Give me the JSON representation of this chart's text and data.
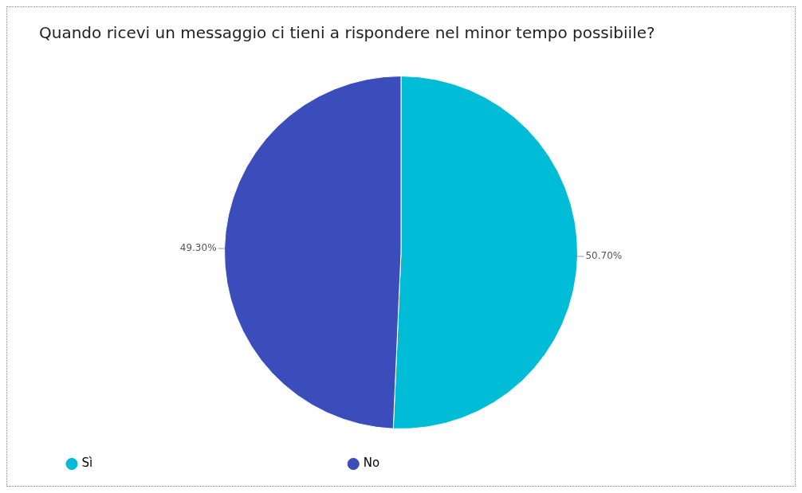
{
  "chart_data": {
    "type": "pie",
    "title": "Quando ricevi un messaggio ci tieni a rispondere nel minor tempo possibiile?",
    "categories": [
      "Sì",
      "No"
    ],
    "values": [
      50.7,
      49.3
    ],
    "value_labels": [
      "50.70%",
      "49.30%"
    ],
    "colors": [
      "#00bcd6",
      "#3a4dbb"
    ],
    "legend": "bottom left"
  }
}
